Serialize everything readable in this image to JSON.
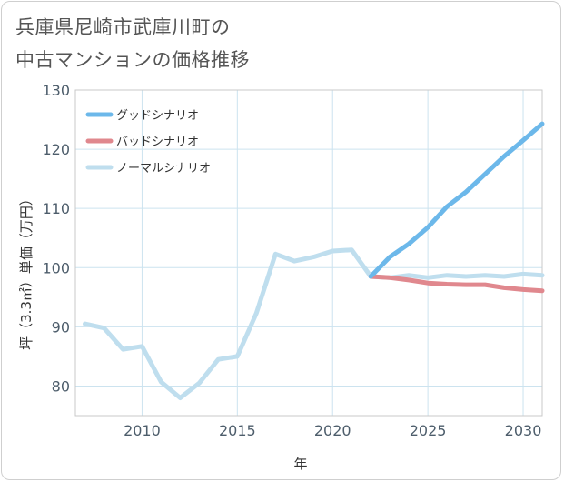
{
  "chart_data": {
    "type": "line",
    "title_lines": [
      "兵庫県尼崎市武庫川町の",
      "中古マンションの価格推移"
    ],
    "xlabel": "年",
    "ylabel": "坪（3.3㎡）単価（万円）",
    "xlim": [
      2006.5,
      2031
    ],
    "ylim": [
      75,
      130
    ],
    "xticks": [
      2010,
      2015,
      2020,
      2025,
      2030
    ],
    "yticks": [
      80,
      90,
      100,
      110,
      120,
      130
    ],
    "grid": true,
    "legend_position": "top-left",
    "series": [
      {
        "name": "グッドシナリオ",
        "color": "#6cb8ea",
        "x": [
          2022,
          2023,
          2024,
          2025,
          2026,
          2027,
          2028,
          2029,
          2030,
          2031
        ],
        "values": [
          98.5,
          101.8,
          104.0,
          106.8,
          110.3,
          112.8,
          115.8,
          118.8,
          121.5,
          124.3
        ]
      },
      {
        "name": "バッドシナリオ",
        "color": "#e0888e",
        "x": [
          2022,
          2023,
          2024,
          2025,
          2026,
          2027,
          2028,
          2029,
          2030,
          2031
        ],
        "values": [
          98.5,
          98.3,
          97.9,
          97.4,
          97.2,
          97.1,
          97.1,
          96.6,
          96.3,
          96.1
        ]
      },
      {
        "name": "ノーマルシナリオ",
        "color": "#bfdeee",
        "x": [
          2007,
          2008,
          2009,
          2010,
          2011,
          2012,
          2013,
          2014,
          2015,
          2016,
          2017,
          2018,
          2019,
          2020,
          2021,
          2022,
          2023,
          2024,
          2025,
          2026,
          2027,
          2028,
          2029,
          2030,
          2031
        ],
        "values": [
          90.5,
          89.8,
          86.2,
          86.7,
          80.7,
          78.0,
          80.5,
          84.5,
          85.0,
          92.3,
          102.3,
          101.1,
          101.8,
          102.8,
          103.0,
          98.5,
          98.3,
          98.7,
          98.3,
          98.7,
          98.5,
          98.7,
          98.5,
          98.9,
          98.7
        ]
      }
    ]
  }
}
